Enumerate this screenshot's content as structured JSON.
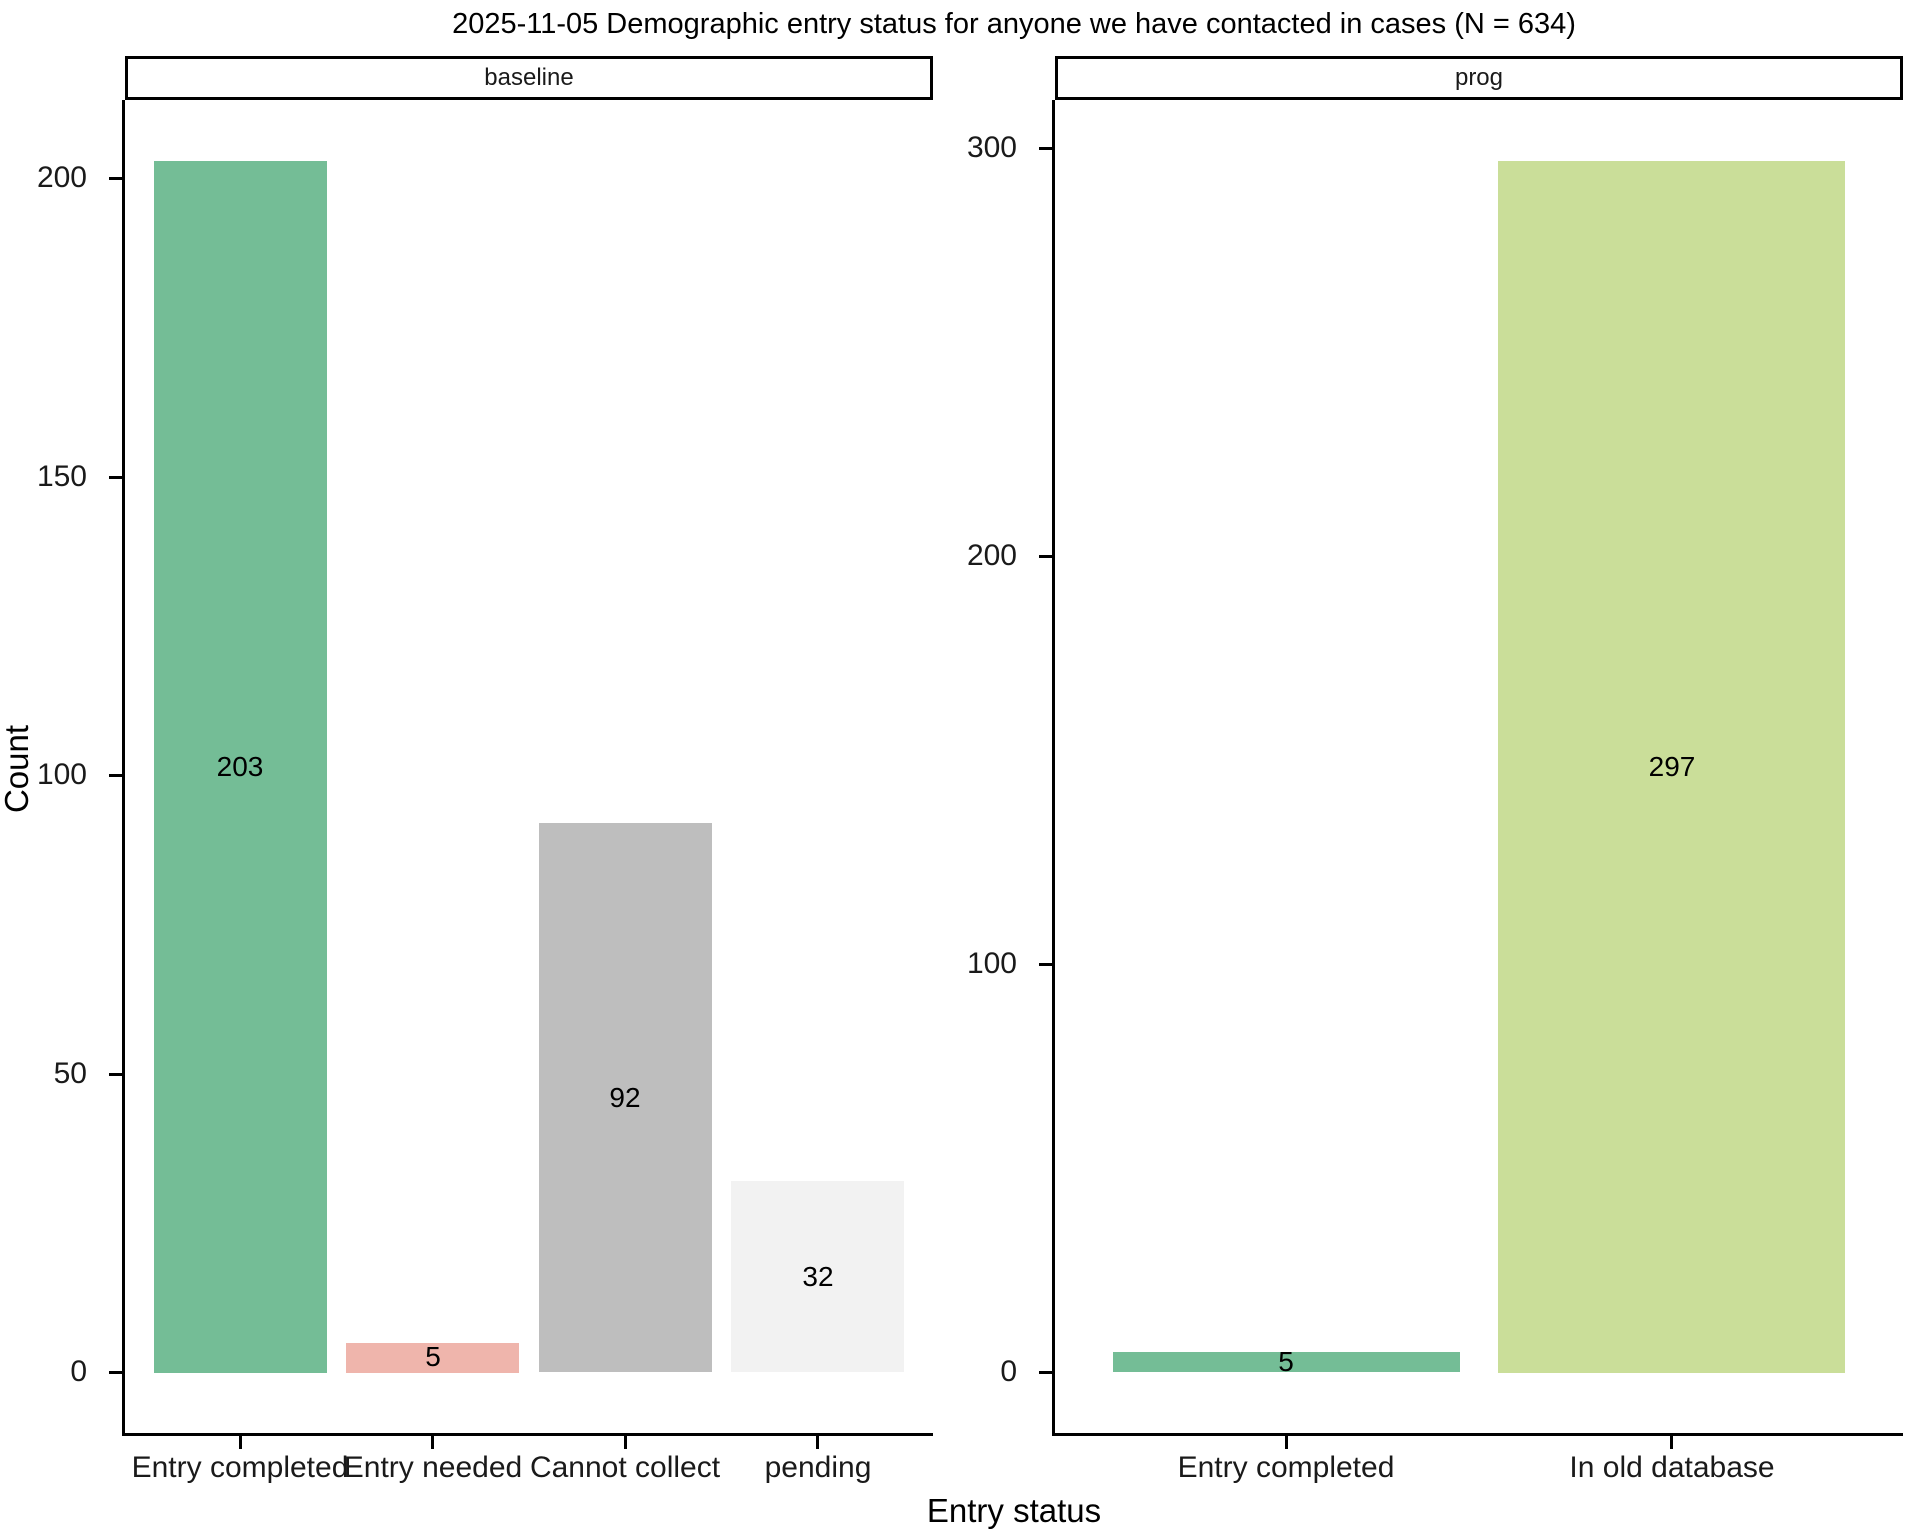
{
  "chart_data": {
    "type": "bar",
    "title": "2025-11-05 Demographic entry status for anyone we have contacted in cases (N = 634)",
    "xlabel": "Entry status",
    "ylabel": "Count",
    "grid": false,
    "legend": "none",
    "bar_labels_shown": true,
    "facets": [
      {
        "name": "baseline",
        "categories": [
          "Entry completed",
          "Entry needed",
          "Cannot collect",
          "pending"
        ],
        "values": [
          203,
          5,
          92,
          32
        ],
        "bar_colors": [
          "#74BD96",
          "#EFB5AC",
          "#BEBEBE",
          "#F2F2F2"
        ],
        "yticks": [
          0,
          50,
          100,
          150,
          200
        ],
        "ylim": [
          -10.15,
          213.15
        ]
      },
      {
        "name": "prog",
        "categories": [
          "Entry completed",
          "In old database"
        ],
        "values": [
          5,
          297
        ],
        "bar_colors": [
          "#74BD96",
          "#CADE99"
        ],
        "yticks": [
          0,
          100,
          200,
          300
        ],
        "ylim": [
          -14.85,
          311.85
        ]
      }
    ],
    "colors": {
      "axis": "#000000",
      "text": "#1a1a1a",
      "strip_background": "#ffffff",
      "strip_border": "#000000",
      "panel_background": "#ffffff"
    }
  }
}
